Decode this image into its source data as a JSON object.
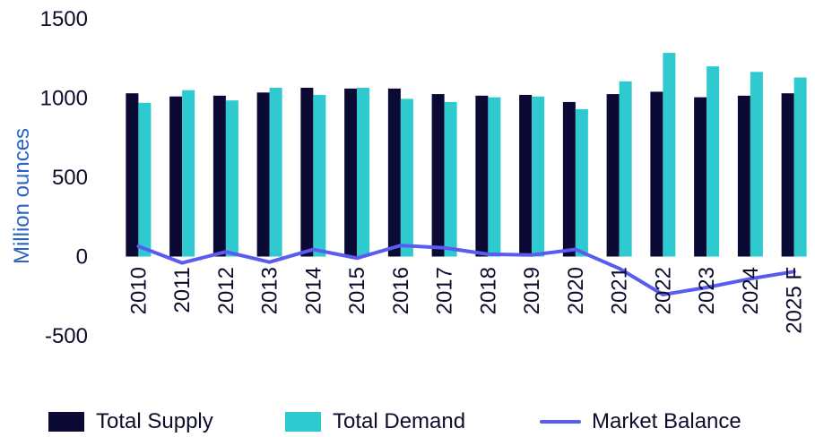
{
  "chart_data": {
    "type": "bar",
    "title": "",
    "xlabel": "",
    "ylabel": "Million ounces",
    "ylim": [
      -500,
      1500
    ],
    "yticks": [
      1500,
      1000,
      500,
      0,
      -500
    ],
    "categories": [
      "2010",
      "2011",
      "2012",
      "2013",
      "2014",
      "2015",
      "2016",
      "2017",
      "2018",
      "2019",
      "2020",
      "2021",
      "2022",
      "2023",
      "2024",
      "2025 F"
    ],
    "series": [
      {
        "name": "Total Supply",
        "type": "bar",
        "color": "#0a0a35",
        "values": [
          1030,
          1010,
          1015,
          1035,
          1065,
          1060,
          1060,
          1025,
          1015,
          1020,
          975,
          1025,
          1040,
          1005,
          1015,
          1030
        ]
      },
      {
        "name": "Total Demand",
        "type": "bar",
        "color": "#2ecad0",
        "values": [
          970,
          1050,
          985,
          1065,
          1020,
          1065,
          995,
          975,
          1005,
          1010,
          930,
          1105,
          1285,
          1200,
          1165,
          1130
        ]
      },
      {
        "name": "Market Balance",
        "type": "line",
        "color": "#5a5cf0",
        "values": [
          65,
          -40,
          30,
          -35,
          45,
          -10,
          70,
          55,
          15,
          10,
          45,
          -75,
          -240,
          -195,
          -140,
          -95
        ]
      }
    ],
    "grid": false,
    "legend_position": "bottom"
  }
}
